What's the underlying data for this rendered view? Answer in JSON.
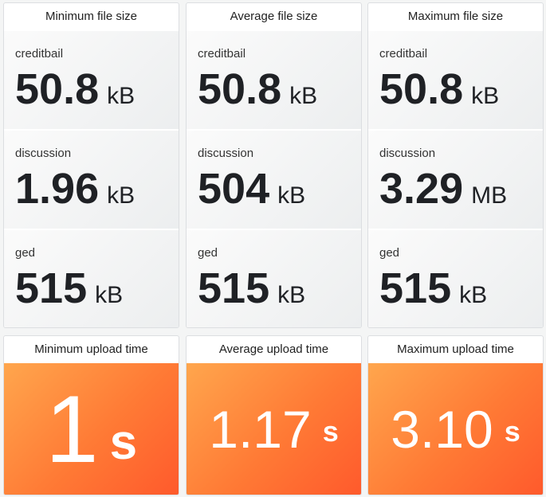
{
  "size_panels": [
    {
      "title": "Minimum file size",
      "rows": [
        {
          "label": "creditbail",
          "value": "50.8",
          "unit": "kB"
        },
        {
          "label": "discussion",
          "value": "1.96",
          "unit": "kB"
        },
        {
          "label": "ged",
          "value": "515",
          "unit": "kB"
        }
      ]
    },
    {
      "title": "Average file size",
      "rows": [
        {
          "label": "creditbail",
          "value": "50.8",
          "unit": "kB"
        },
        {
          "label": "discussion",
          "value": "504",
          "unit": "kB"
        },
        {
          "label": "ged",
          "value": "515",
          "unit": "kB"
        }
      ]
    },
    {
      "title": "Maximum file size",
      "rows": [
        {
          "label": "creditbail",
          "value": "50.8",
          "unit": "kB"
        },
        {
          "label": "discussion",
          "value": "3.29",
          "unit": "MB"
        },
        {
          "label": "ged",
          "value": "515",
          "unit": "kB"
        }
      ]
    }
  ],
  "time_panels": [
    {
      "title": "Minimum upload time",
      "value": "1",
      "unit": "s"
    },
    {
      "title": "Average upload time",
      "value": "1.17",
      "unit": "s"
    },
    {
      "title": "Maximum upload time",
      "value": "3.10",
      "unit": "s"
    }
  ]
}
